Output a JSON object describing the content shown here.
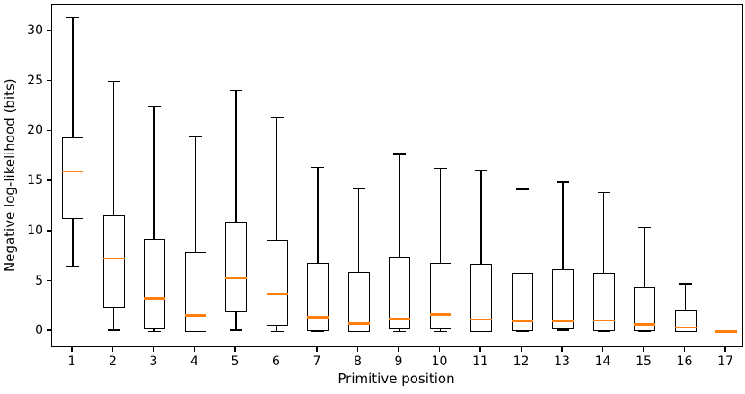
{
  "chart_data": {
    "type": "boxplot",
    "title": "",
    "xlabel": "Primitive position",
    "ylabel": "Negative log-likelihood (bits)",
    "x_categories": [
      "1",
      "2",
      "3",
      "4",
      "5",
      "6",
      "7",
      "8",
      "9",
      "10",
      "11",
      "12",
      "13",
      "14",
      "15",
      "16",
      "17"
    ],
    "yticks": [
      0,
      5,
      10,
      15,
      20,
      25,
      30
    ],
    "ylim": [
      -1.5,
      32.6
    ],
    "grid": false,
    "legend": null,
    "line_color": "#000000",
    "median_color": "#ff7f0e",
    "boxes": [
      {
        "pos": 1,
        "whisker_low": 6.5,
        "q1": 11.4,
        "median": 16.0,
        "q3": 19.3,
        "whisker_high": 31.4
      },
      {
        "pos": 2,
        "whisker_low": 0.1,
        "q1": 2.5,
        "median": 7.3,
        "q3": 11.5,
        "whisker_high": 25.0
      },
      {
        "pos": 3,
        "whisker_low": 0.0,
        "q1": 0.3,
        "median": 3.3,
        "q3": 9.1,
        "whisker_high": 22.5
      },
      {
        "pos": 4,
        "whisker_low": 0.0,
        "q1": 0.1,
        "median": 1.6,
        "q3": 7.8,
        "whisker_high": 19.5
      },
      {
        "pos": 5,
        "whisker_low": 0.1,
        "q1": 2.0,
        "median": 5.3,
        "q3": 10.8,
        "whisker_high": 24.1
      },
      {
        "pos": 6,
        "whisker_low": 0.0,
        "q1": 0.7,
        "median": 3.7,
        "q3": 9.0,
        "whisker_high": 21.4
      },
      {
        "pos": 7,
        "whisker_low": 0.0,
        "q1": 0.2,
        "median": 1.4,
        "q3": 6.7,
        "whisker_high": 16.4
      },
      {
        "pos": 8,
        "whisker_low": 0.0,
        "q1": 0.1,
        "median": 0.8,
        "q3": 5.8,
        "whisker_high": 14.3
      },
      {
        "pos": 9,
        "whisker_low": 0.0,
        "q1": 0.3,
        "median": 1.3,
        "q3": 7.3,
        "whisker_high": 17.7
      },
      {
        "pos": 10,
        "whisker_low": 0.0,
        "q1": 0.3,
        "median": 1.7,
        "q3": 6.7,
        "whisker_high": 16.3
      },
      {
        "pos": 11,
        "whisker_low": 0.0,
        "q1": 0.1,
        "median": 1.2,
        "q3": 6.6,
        "whisker_high": 16.1
      },
      {
        "pos": 12,
        "whisker_low": 0.0,
        "q1": 0.2,
        "median": 1.0,
        "q3": 5.7,
        "whisker_high": 14.2
      },
      {
        "pos": 13,
        "whisker_low": 0.1,
        "q1": 0.3,
        "median": 1.0,
        "q3": 6.1,
        "whisker_high": 14.9
      },
      {
        "pos": 14,
        "whisker_low": 0.0,
        "q1": 0.2,
        "median": 1.1,
        "q3": 5.7,
        "whisker_high": 13.9
      },
      {
        "pos": 15,
        "whisker_low": 0.0,
        "q1": 0.2,
        "median": 0.7,
        "q3": 4.3,
        "whisker_high": 10.4
      },
      {
        "pos": 16,
        "whisker_low": 0.0,
        "q1": 0.1,
        "median": 0.4,
        "q3": 2.0,
        "whisker_high": 4.8
      },
      {
        "pos": 17,
        "whisker_low": 0.0,
        "q1": 0.0,
        "median": 0.0,
        "q3": 0.0,
        "whisker_high": 0.0
      }
    ]
  }
}
